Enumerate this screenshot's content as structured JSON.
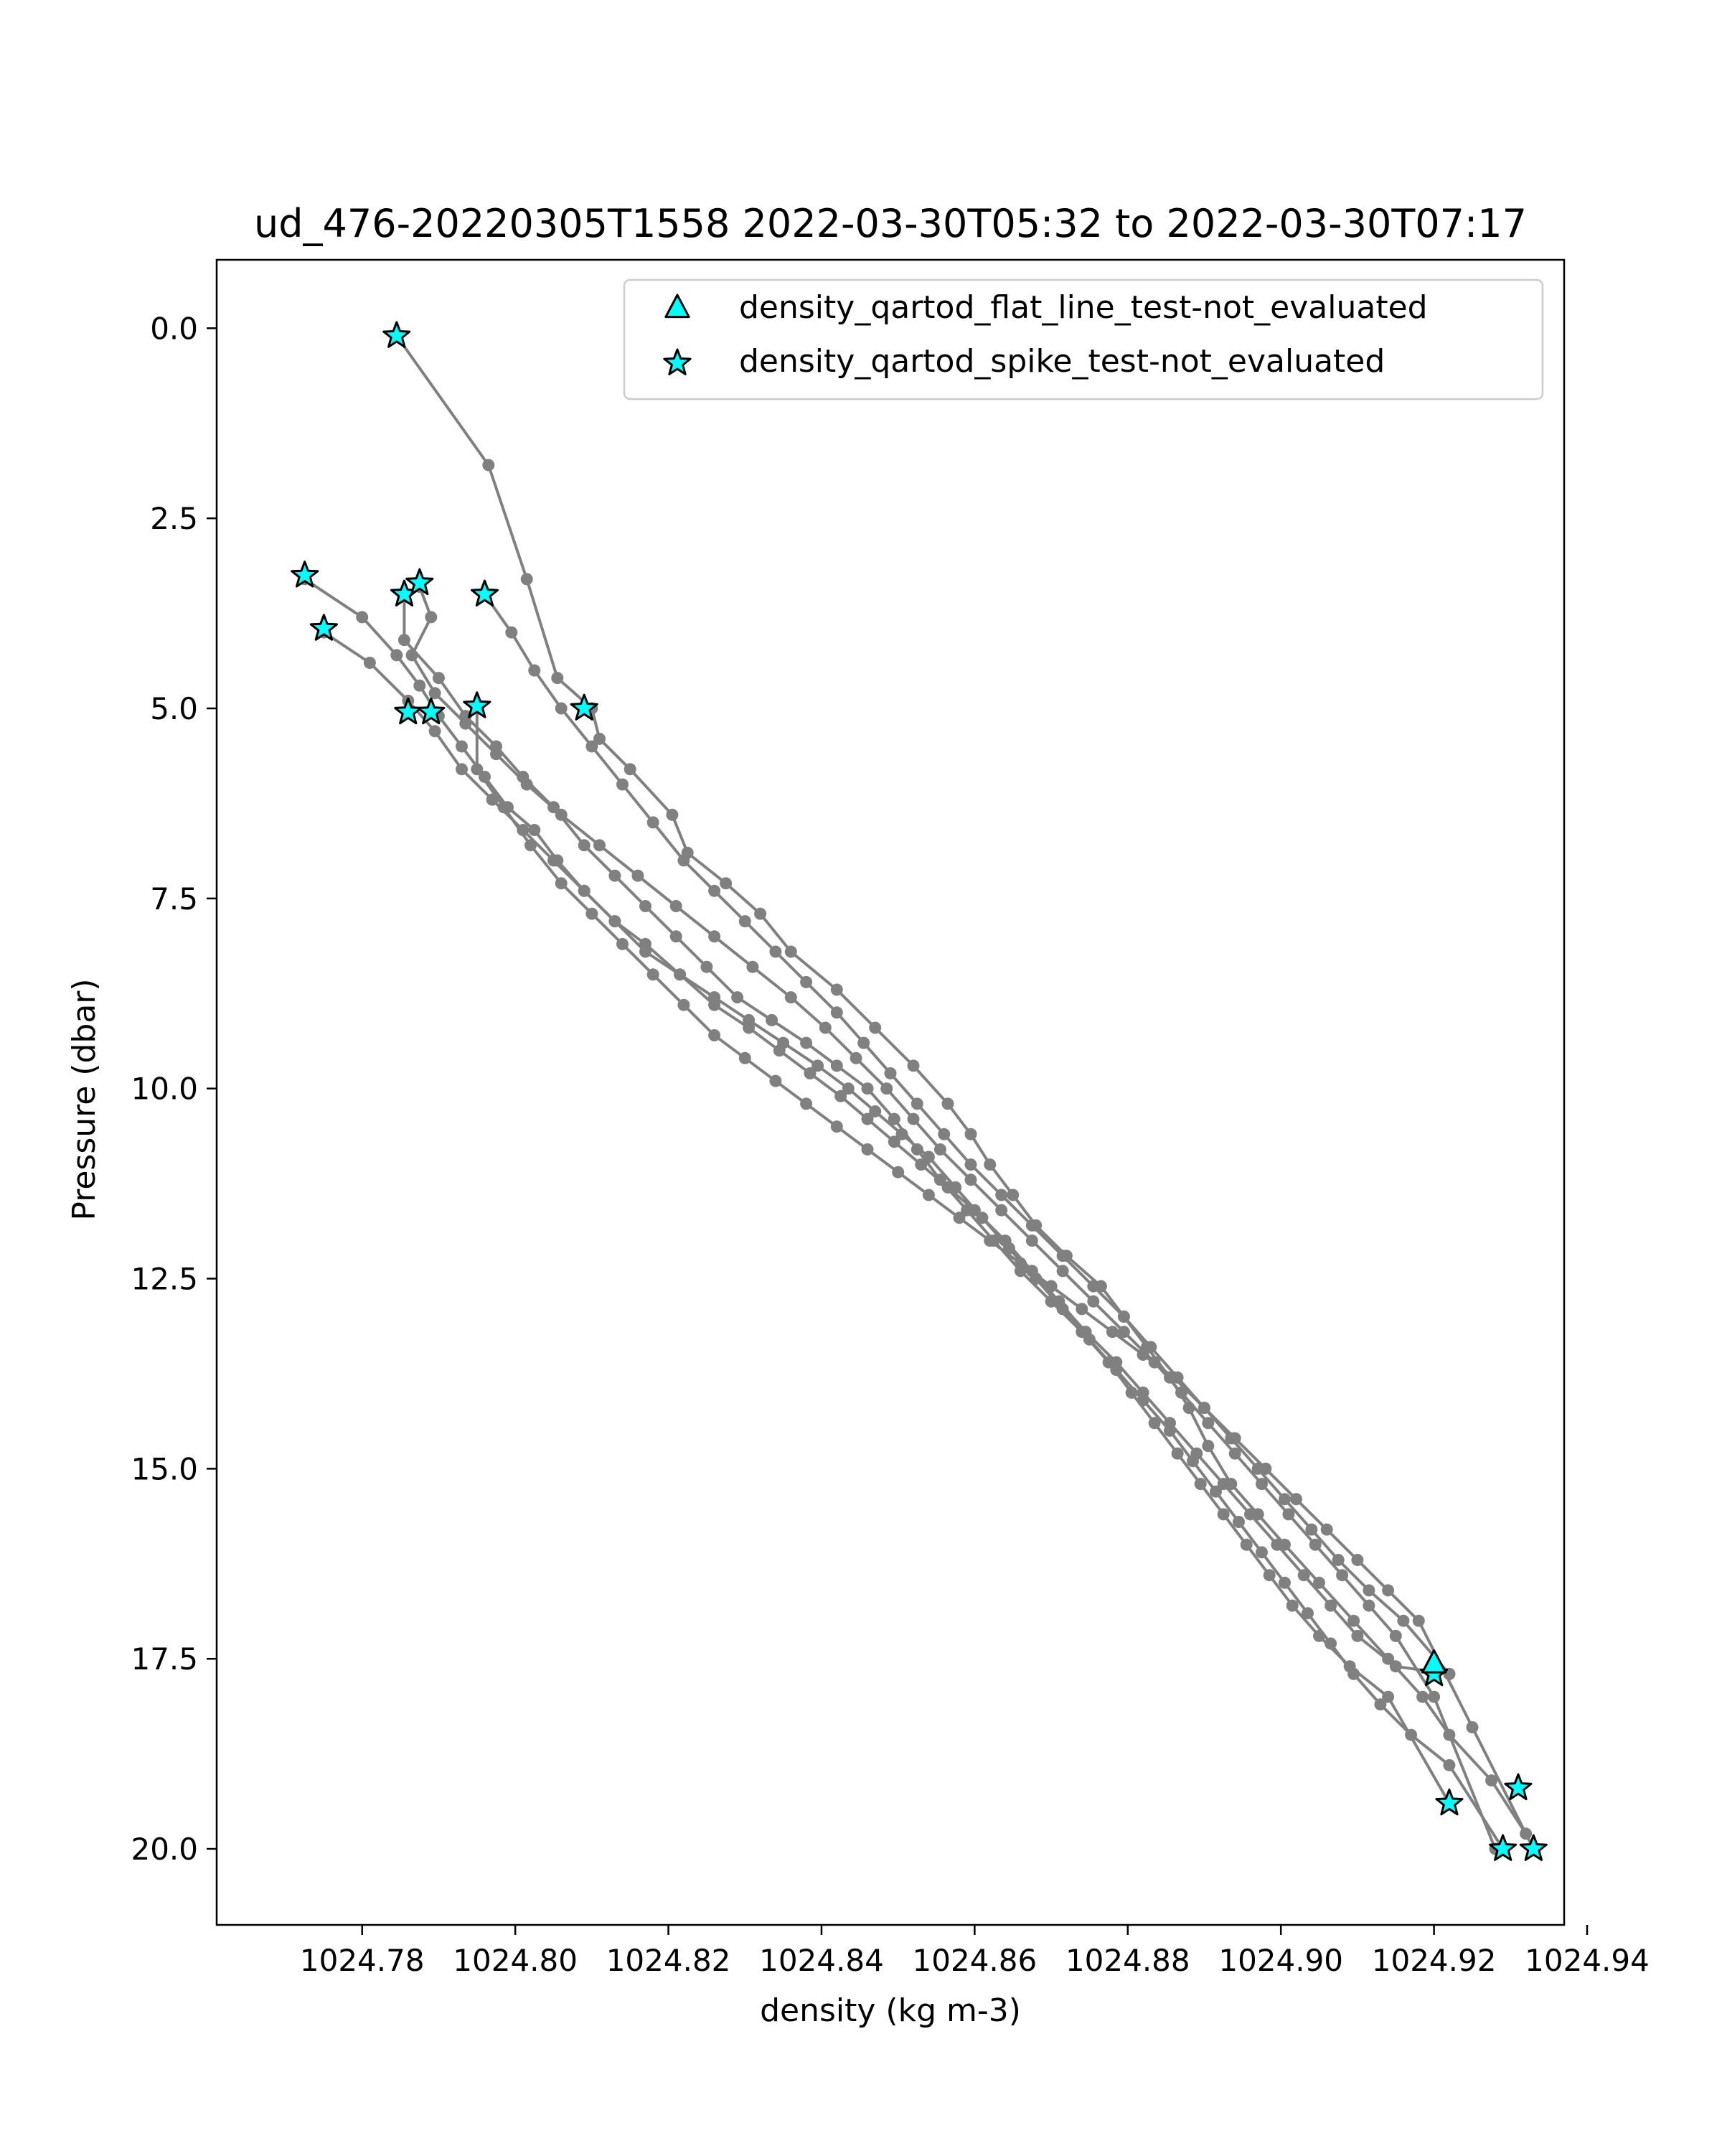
{
  "chart_data": {
    "type": "scatter",
    "title": "ud_476-20220305T1558 2022-03-30T05:32 to 2022-03-30T07:17",
    "xlabel": "density (kg m-3)",
    "ylabel": "Pressure (dbar)",
    "xlim": [
      1024.761,
      1024.937
    ],
    "ylim": [
      21.0,
      -0.9
    ],
    "y_inverted": true,
    "grid": false,
    "xticks": [
      1024.78,
      1024.8,
      1024.82,
      1024.84,
      1024.86,
      1024.88,
      1024.9,
      1024.92,
      1024.94
    ],
    "xtick_labels": [
      "1024.78",
      "1024.80",
      "1024.82",
      "1024.84",
      "1024.86",
      "1024.88",
      "1024.90",
      "1024.92",
      "1024.94"
    ],
    "yticks": [
      0.0,
      2.5,
      5.0,
      7.5,
      10.0,
      12.5,
      15.0,
      17.5,
      20.0
    ],
    "ytick_labels": [
      "0.0",
      "2.5",
      "5.0",
      "7.5",
      "10.0",
      "12.5",
      "15.0",
      "17.5",
      "20.0"
    ],
    "legend": {
      "placement": "upper right",
      "entries": [
        {
          "label": "density_qartod_flat_line_test-not_evaluated",
          "marker": "triangle"
        },
        {
          "label": "density_qartod_spike_test-not_evaluated",
          "marker": "star"
        }
      ]
    },
    "colors": {
      "line": "#808080",
      "marker_fill": "#00ffff",
      "marker_edge": "#000000"
    },
    "profiles": [
      {
        "x": [
          1024.7845,
          1024.7965,
          1024.8015,
          1024.8055,
          1024.81,
          1024.811,
          1024.815,
          1024.8205,
          1024.8225,
          1024.8275,
          1024.832,
          1024.836,
          1024.842,
          1024.847,
          1024.852,
          1024.8565,
          1024.8595,
          1024.862,
          1024.865,
          1024.868,
          1024.872,
          1024.8765,
          1024.8795,
          1024.8825,
          1024.8855,
          1024.888,
          1024.8905,
          1024.8935,
          1024.897,
          1024.9005,
          1024.905,
          1024.9095,
          1024.914,
          1024.9185,
          1024.922,
          1024.9275,
          1024.932
        ],
        "y": [
          0.1,
          1.8,
          3.3,
          4.6,
          5.0,
          5.4,
          5.8,
          6.4,
          6.9,
          7.3,
          7.7,
          8.2,
          8.7,
          9.2,
          9.7,
          10.2,
          10.6,
          11.0,
          11.4,
          11.8,
          12.2,
          12.6,
          13.0,
          13.4,
          13.8,
          14.2,
          14.7,
          15.2,
          15.6,
          16.0,
          16.5,
          17.0,
          17.5,
          18.0,
          18.5,
          19.1,
          19.8
        ]
      },
      {
        "x": [
          1024.7725,
          1024.78,
          1024.7845,
          1024.7875,
          1024.79,
          1024.793,
          1024.796,
          1024.799,
          1024.8025,
          1024.8055,
          1024.809,
          1024.813,
          1024.817,
          1024.8215,
          1024.826,
          1024.8305,
          1024.8345,
          1024.8385,
          1024.8425,
          1024.846,
          1024.8495,
          1024.853,
          1024.8565,
          1024.86,
          1024.864,
          1024.8675,
          1024.871,
          1024.8745,
          1024.8785,
          1024.882,
          1024.8855,
          1024.889,
          1024.8925,
          1024.896,
          1024.8995,
          1024.903,
          1024.9065,
          1024.91,
          1024.915,
          1024.922
        ],
        "y": [
          3.3,
          3.8,
          4.3,
          4.7,
          5.1,
          5.5,
          5.9,
          6.3,
          6.6,
          7.0,
          7.4,
          7.8,
          8.2,
          8.5,
          8.9,
          9.2,
          9.5,
          9.8,
          10.1,
          10.4,
          10.7,
          11.0,
          11.3,
          11.6,
          12.0,
          12.4,
          12.8,
          13.2,
          13.6,
          14.0,
          14.4,
          14.8,
          15.2,
          15.6,
          16.0,
          16.4,
          16.8,
          17.2,
          17.6,
          17.7
        ]
      },
      {
        "x": [
          1024.775,
          1024.781,
          1024.786,
          1024.7895,
          1024.793,
          1024.797,
          1024.801,
          1024.805,
          1024.809,
          1024.813,
          1024.817,
          1024.8215,
          1024.826,
          1024.8305,
          1024.835,
          1024.8395,
          1024.8435,
          1024.847,
          1024.8505,
          1024.854,
          1024.8575,
          1024.861,
          1024.8645,
          1024.868,
          1024.8715,
          1024.875,
          1024.8785,
          1024.882,
          1024.8855,
          1024.8885,
          1024.8915,
          1024.8945,
          1024.8975,
          1024.9005,
          1024.9035,
          1024.9065,
          1024.9095,
          1024.913,
          1024.917,
          1024.922,
          1024.929
        ],
        "y": [
          4.0,
          4.4,
          4.9,
          5.3,
          5.8,
          6.2,
          6.6,
          7.0,
          7.4,
          7.8,
          8.1,
          8.5,
          8.8,
          9.1,
          9.4,
          9.7,
          10.0,
          10.3,
          10.6,
          10.9,
          11.3,
          11.7,
          12.1,
          12.5,
          12.9,
          13.3,
          13.7,
          14.1,
          14.5,
          14.9,
          15.3,
          15.7,
          16.1,
          16.5,
          16.9,
          17.3,
          17.7,
          18.1,
          18.5,
          18.9,
          20.0
        ]
      },
      {
        "x": [
          1024.7855,
          1024.7855,
          1024.79,
          1024.7935,
          1024.7975,
          1024.801,
          1024.805,
          1024.809,
          1024.813,
          1024.817,
          1024.821,
          1024.825,
          1024.829,
          1024.8335,
          1024.838,
          1024.842,
          1024.846,
          1024.8495,
          1024.8525,
          1024.8555,
          1024.859,
          1024.8625,
          1024.866,
          1024.87,
          1024.874,
          1024.8775,
          1024.8805,
          1024.8835,
          1024.8865,
          1024.8895,
          1024.8925,
          1024.8955,
          1024.8985,
          1024.9015,
          1024.905,
          1024.909,
          1024.914,
          1024.922
        ],
        "y": [
          3.5,
          4.1,
          4.6,
          5.1,
          5.5,
          5.9,
          6.3,
          6.8,
          7.2,
          7.6,
          8.0,
          8.4,
          8.8,
          9.1,
          9.4,
          9.7,
          10.0,
          10.4,
          10.8,
          11.2,
          11.6,
          12.0,
          12.4,
          12.8,
          13.2,
          13.6,
          14.0,
          14.4,
          14.8,
          15.2,
          15.6,
          16.0,
          16.4,
          16.8,
          17.2,
          17.6,
          18.0,
          19.4
        ]
      },
      {
        "x": [
          1024.7875,
          1024.789,
          1024.7865,
          1024.7895,
          1024.7935,
          1024.7975,
          1024.8015,
          1024.806,
          1024.811,
          1024.816,
          1024.821,
          1024.826,
          1024.831,
          1024.836,
          1024.8405,
          1024.8445,
          1024.8485,
          1024.852,
          1024.8555,
          1024.8595,
          1024.8635,
          1024.8675,
          1024.8715,
          1024.8755,
          1024.8795,
          1024.8835,
          1024.887,
          1024.8905,
          1024.894,
          1024.8975,
          1024.901,
          1024.9045,
          1024.908,
          1024.9115,
          1024.915,
          1024.92,
          1024.928
        ],
        "y": [
          3.4,
          3.8,
          4.3,
          4.8,
          5.2,
          5.6,
          6.0,
          6.4,
          6.8,
          7.2,
          7.6,
          8.0,
          8.4,
          8.8,
          9.2,
          9.6,
          10.0,
          10.4,
          10.8,
          11.2,
          11.6,
          12.0,
          12.4,
          12.8,
          13.2,
          13.6,
          14.0,
          14.4,
          14.8,
          15.2,
          15.6,
          16.0,
          16.4,
          16.8,
          17.2,
          18.0,
          20.0
        ]
      },
      {
        "x": [
          1024.796,
          1024.7995,
          1024.8025,
          1024.806,
          1024.81,
          1024.814,
          1024.818,
          1024.822,
          1024.826,
          1024.83,
          1024.834,
          1024.838,
          1024.842,
          1024.8455,
          1024.849,
          1024.8525,
          1024.856,
          1024.8595,
          1024.8635,
          1024.8675,
          1024.8715,
          1024.8755,
          1024.8795,
          1024.883,
          1024.8865,
          1024.89,
          1024.8935,
          1024.897,
          1024.9005,
          1024.904,
          1024.9075,
          1024.9115,
          1024.916,
          1024.922
        ],
        "y": [
          3.5,
          4.0,
          4.5,
          5.0,
          5.5,
          6.0,
          6.5,
          7.0,
          7.4,
          7.8,
          8.2,
          8.6,
          9.0,
          9.4,
          9.8,
          10.2,
          10.6,
          11.0,
          11.4,
          11.8,
          12.2,
          12.6,
          13.0,
          13.4,
          13.8,
          14.2,
          14.6,
          15.0,
          15.4,
          15.8,
          16.2,
          16.6,
          17.0,
          17.7
        ]
      },
      {
        "x": [
          1024.795,
          1024.795,
          1024.7985,
          1024.802,
          1024.806,
          1024.81,
          1024.814,
          1024.818,
          1024.822,
          1024.826,
          1024.83,
          1024.834,
          1024.838,
          1024.842,
          1024.846,
          1024.85,
          1024.854,
          1024.858,
          1024.862,
          1024.866,
          1024.87,
          1024.874,
          1024.878,
          1024.882,
          1024.886,
          1024.89,
          1024.894,
          1024.898,
          1024.902,
          1024.906,
          1024.91,
          1024.914,
          1024.918,
          1024.925,
          1024.933
        ],
        "y": [
          5.0,
          5.8,
          6.3,
          6.8,
          7.3,
          7.7,
          8.1,
          8.5,
          8.9,
          9.3,
          9.6,
          9.9,
          10.2,
          10.5,
          10.8,
          11.1,
          11.4,
          11.7,
          12.0,
          12.3,
          12.6,
          12.9,
          13.2,
          13.5,
          13.8,
          14.2,
          14.6,
          15.0,
          15.4,
          15.8,
          16.2,
          16.6,
          17.0,
          18.4,
          20.0
        ]
      }
    ],
    "flagged_markers": {
      "spike_test": {
        "x": [
          1024.7845,
          1024.7725,
          1024.775,
          1024.7855,
          1024.7875,
          1024.796,
          1024.786,
          1024.789,
          1024.795,
          1024.809,
          1024.92,
          1024.922,
          1024.931,
          1024.929,
          1024.933
        ],
        "y": [
          0.1,
          3.25,
          3.95,
          3.5,
          3.35,
          3.5,
          5.05,
          5.05,
          4.97,
          5.0,
          17.7,
          19.4,
          19.2,
          20.0,
          20.0
        ]
      },
      "flat_line_test": {
        "x": [
          1024.92
        ],
        "y": [
          17.55
        ]
      }
    }
  }
}
